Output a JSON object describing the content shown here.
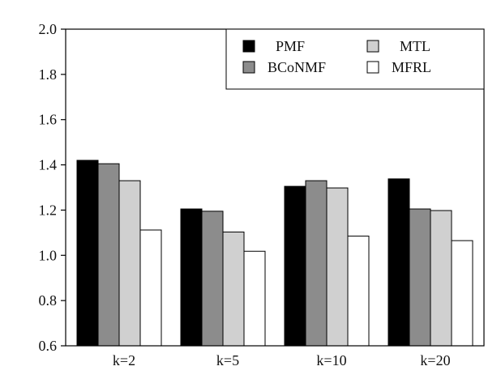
{
  "chart_data": {
    "type": "bar",
    "categories": [
      "k=2",
      "k=5",
      "k=10",
      "k=20"
    ],
    "series": [
      {
        "name": "PMF",
        "values": [
          1.42,
          1.205,
          1.305,
          1.338
        ],
        "color": "#000000"
      },
      {
        "name": "BCoNMF",
        "values": [
          1.405,
          1.195,
          1.33,
          1.205
        ],
        "color": "#8c8c8c"
      },
      {
        "name": "MTL",
        "values": [
          1.33,
          1.103,
          1.298,
          1.198
        ],
        "color": "#d0d0d0"
      },
      {
        "name": "MFRL",
        "values": [
          1.112,
          1.018,
          1.085,
          1.065
        ],
        "color": "#ffffff"
      }
    ],
    "title": "",
    "xlabel": "",
    "ylabel": "",
    "ylim": [
      0.6,
      2.0
    ],
    "yticks": [
      "0.6",
      "0.8",
      "1.0",
      "1.2",
      "1.4",
      "1.6",
      "1.8",
      "2.0"
    ],
    "grid": false,
    "legend_position": "top-right"
  }
}
